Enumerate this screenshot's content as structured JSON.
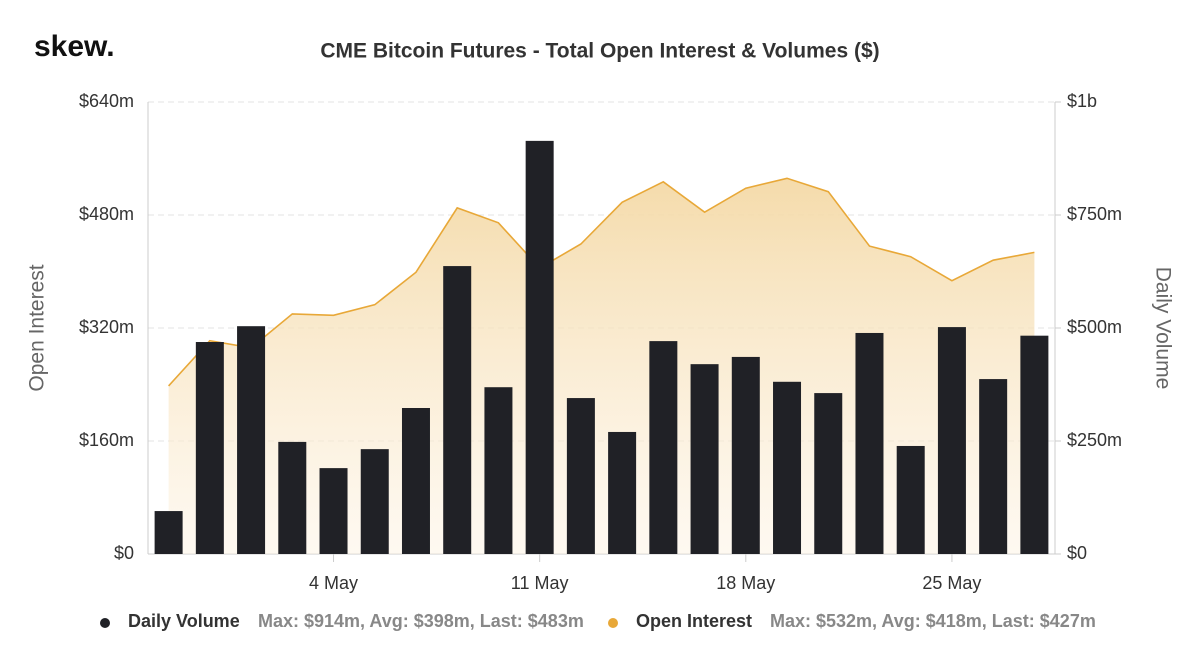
{
  "brand": "skew.",
  "chart_data": {
    "type": "bar",
    "title": "CME Bitcoin Futures - Total Open Interest & Volumes ($)",
    "ylabel": "Open Interest",
    "y2label": "Daily Volume",
    "categories": [
      null,
      null,
      null,
      null,
      "4 May",
      null,
      null,
      null,
      null,
      "11 May",
      null,
      null,
      null,
      null,
      "18 May",
      null,
      null,
      null,
      null,
      "25 May",
      null,
      null
    ],
    "ylim": [
      0,
      640
    ],
    "yticks": [
      {
        "value": 0,
        "label": "$0"
      },
      {
        "value": 160,
        "label": "$160m"
      },
      {
        "value": 320,
        "label": "$320m"
      },
      {
        "value": 480,
        "label": "$480m"
      },
      {
        "value": 640,
        "label": "$640m"
      }
    ],
    "y2lim": [
      0,
      1000
    ],
    "y2ticks": [
      {
        "value": 0,
        "label": "$0"
      },
      {
        "value": 250,
        "label": "$250m"
      },
      {
        "value": 500,
        "label": "$500m"
      },
      {
        "value": 750,
        "label": "$750m"
      },
      {
        "value": 1000,
        "label": "$1b"
      }
    ],
    "grid": true,
    "series": [
      {
        "name": "Daily Volume",
        "type": "bar",
        "axis": "y2",
        "color": "#202126",
        "summary": "Max: $914m, Avg: $398m, Last: $483m",
        "values": [
          95,
          469,
          504,
          248,
          190,
          232,
          323,
          637,
          369,
          914,
          345,
          270,
          471,
          420,
          436,
          381,
          356,
          489,
          239,
          502,
          387,
          483
        ]
      },
      {
        "name": "Open Interest",
        "type": "area",
        "axis": "y",
        "color": "#e8a838",
        "summary": "Max: $532m, Avg: $418m, Last: $427m",
        "values": [
          238,
          302,
          292,
          340,
          338,
          353,
          399,
          490,
          469,
          405,
          439,
          498,
          527,
          484,
          518,
          532,
          513,
          436,
          421,
          387,
          416,
          427
        ]
      }
    ]
  }
}
